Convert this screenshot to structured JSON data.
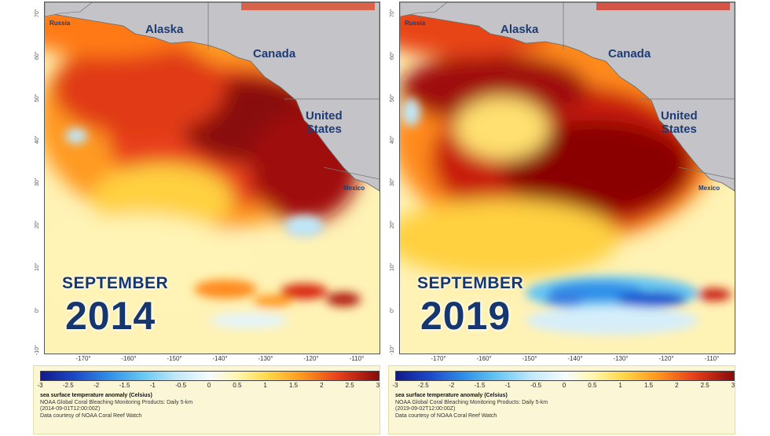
{
  "panels": [
    {
      "month": "SEPTEMBER",
      "year": "2014",
      "labels": {
        "alaska": "Alaska",
        "canada": "Canada",
        "us": "United\nStates",
        "mexico": "Mexico",
        "russia": "Russia"
      },
      "legend": {
        "title": "sea surface temperature anomaly (Celsius)",
        "product": "NOAA Global Coral Bleaching Monitoring Products: Daily 5-km",
        "date": "(2014-09-01T12:00:00Z)",
        "credit": "Data courtesy of NOAA Coral Reef Watch"
      },
      "features": {
        "cold_band": "weak",
        "warm_core": "east"
      }
    },
    {
      "month": "SEPTEMBER",
      "year": "2019",
      "labels": {
        "alaska": "Alaska",
        "canada": "Canada",
        "us": "United\nStates",
        "mexico": "Mexico",
        "russia": "Russia"
      },
      "legend": {
        "title": "sea surface temperature anomaly (Celsius)",
        "product": "NOAA Global Coral Bleaching Monitoring Products: Daily 5-km",
        "date": "(2019-09-02T12:00:00Z)",
        "credit": "Data courtesy of NOAA Coral Reef Watch"
      },
      "features": {
        "cold_band": "strong",
        "warm_core": "central"
      }
    }
  ],
  "lon_ticks": [
    "-170°",
    "-160°",
    "-150°",
    "-140°",
    "-130°",
    "-120°",
    "-110°"
  ],
  "lat_ticks": [
    "70°",
    "60°",
    "50°",
    "40°",
    "30°",
    "20°",
    "10°",
    "0°",
    "-10°"
  ],
  "scale_ticks": [
    "-3",
    "-2.5",
    "-2",
    "-1.5",
    "-1",
    "-0.5",
    "0",
    "0.5",
    "1",
    "1.5",
    "2",
    "2.5",
    "3"
  ],
  "colors": {
    "land": "#c4c4c8",
    "text_blue": "#16376e",
    "deep_red": "#8a0505",
    "red": "#d8260f",
    "orange": "#ff8a1a",
    "yellow": "#ffd84a",
    "pale": "#fff6c0",
    "cold": "#2f8ee8",
    "cold_light": "#b9e6f8"
  }
}
